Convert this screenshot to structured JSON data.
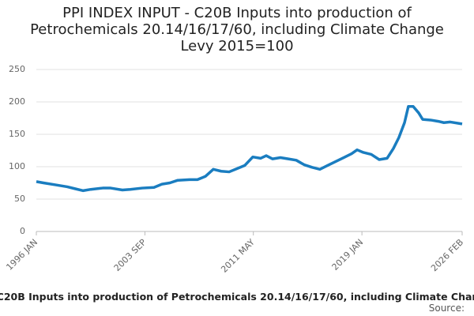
{
  "chart_data": {
    "type": "line",
    "title": "PPI INDEX INPUT - C20B Inputs into production of Petrochemicals 20.14/16/17/60, including Climate Change Levy 2015=100",
    "source": "Source:",
    "x": [
      1996.0,
      1996.5,
      1997.34,
      1998.18,
      1998.73,
      1999.29,
      1999.85,
      2000.69,
      2001.25,
      2002.08,
      2002.64,
      2003.48,
      2004.31,
      2004.87,
      2005.43,
      2005.99,
      2006.83,
      2007.38,
      2007.94,
      2008.5,
      2009.06,
      2009.62,
      2010.17,
      2010.73,
      2011.29,
      2011.85,
      2012.24,
      2012.69,
      2013.24,
      2013.8,
      2014.36,
      2014.92,
      2015.48,
      2016.03,
      2016.59,
      2017.15,
      2017.71,
      2018.27,
      2018.66,
      2019.1,
      2019.66,
      2020.22,
      2020.78,
      2021.22,
      2021.61,
      2022.01,
      2022.28,
      2022.62,
      2023.01,
      2023.29,
      2023.85,
      2024.4,
      2024.79,
      2025.24,
      2026.08
    ],
    "series": [
      {
        "color": "#1a7dc0",
        "values": [
          77,
          75,
          72,
          69,
          66,
          63,
          65,
          67,
          67,
          64,
          65,
          67,
          68,
          73,
          75,
          79,
          80,
          80,
          85,
          96,
          93,
          92,
          97,
          102,
          115,
          113,
          117,
          112,
          114,
          112,
          110,
          103,
          99,
          96,
          102,
          108,
          114,
          120,
          126,
          122,
          119,
          111,
          113,
          128,
          145,
          168,
          193,
          193,
          183,
          173,
          172,
          170,
          168,
          169,
          166
        ]
      }
    ],
    "xlim": [
      1996.0,
      2026.08
    ],
    "xticks": [
      {
        "value": 1996.0,
        "label": "1996 JAN"
      },
      {
        "value": 2003.67,
        "label": "2003 SEP"
      },
      {
        "value": 2011.33,
        "label": "2011 MAY"
      },
      {
        "value": 2019.0,
        "label": "2019 JAN"
      },
      {
        "value": 2026.08,
        "label": "2026 FEB"
      }
    ],
    "ylim": [
      0,
      250
    ],
    "yticks": [
      0,
      50,
      100,
      150,
      200,
      250
    ],
    "grid": true
  }
}
